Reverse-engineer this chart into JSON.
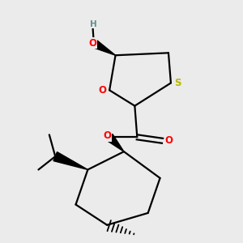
{
  "bg_color": "#ebebeb",
  "atom_colors": {
    "C": "#000000",
    "O": "#ff0000",
    "S": "#b8b800",
    "H": "#5f9090"
  },
  "bond_color": "#000000",
  "bond_lw": 1.6,
  "ring_O_label": "O",
  "ring_S_label": "S",
  "OH_label": "O",
  "H_label": "H",
  "ester_O_label": "O",
  "carbonyl_O_label": "O"
}
